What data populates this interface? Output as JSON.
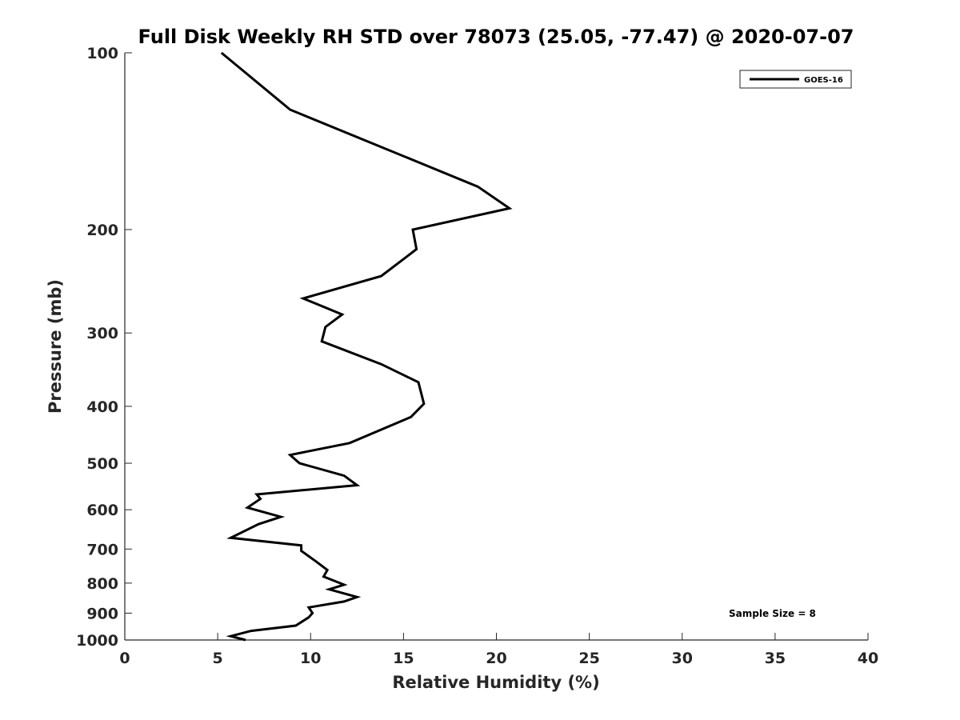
{
  "chart_data": {
    "type": "line",
    "title": "Full Disk Weekly RH STD over 78073 (25.05, -77.47) @ 2020-07-07",
    "xlabel": "Relative Humidity (%)",
    "ylabel": "Pressure (mb)",
    "xlim": [
      0,
      40
    ],
    "ylim": [
      1000,
      100
    ],
    "y_scale": "log",
    "x_ticks": [
      0,
      5,
      10,
      15,
      20,
      25,
      30,
      35,
      40
    ],
    "x_tick_labels": [
      "0",
      "5",
      "10",
      "15",
      "20",
      "25",
      "30",
      "35",
      "40"
    ],
    "y_ticks": [
      100,
      200,
      300,
      400,
      500,
      600,
      700,
      800,
      900,
      1000
    ],
    "y_tick_labels": [
      "100",
      "200",
      "300",
      "400",
      "500",
      "600",
      "700",
      "800",
      "900",
      "1000"
    ],
    "grid": false,
    "legend_position": "top-right",
    "annotation": "Sample Size = 8",
    "series": [
      {
        "name": "GOES-16",
        "color": "#000000",
        "x": [
          5.2,
          8.9,
          14.1,
          19.0,
          20.7,
          15.5,
          15.7,
          13.8,
          9.6,
          11.7,
          10.8,
          10.6,
          13.8,
          15.8,
          16.1,
          15.4,
          12.1,
          8.9,
          9.4,
          11.8,
          12.5,
          7.1,
          7.3,
          6.6,
          8.4,
          7.2,
          5.7,
          9.5,
          9.5,
          10.3,
          10.9,
          10.7,
          11.8,
          11.0,
          12.5,
          11.8,
          9.9,
          10.1,
          9.9,
          9.2,
          6.8,
          5.7,
          6.5
        ],
        "y": [
          100,
          125,
          146,
          169,
          184,
          200,
          216,
          240,
          262,
          279,
          293,
          310,
          339,
          364,
          396,
          417,
          462,
          484,
          500,
          525,
          545,
          565,
          575,
          595,
          617,
          635,
          670,
          690,
          705,
          735,
          760,
          780,
          805,
          820,
          845,
          860,
          880,
          900,
          915,
          945,
          965,
          985,
          1000
        ]
      }
    ]
  }
}
